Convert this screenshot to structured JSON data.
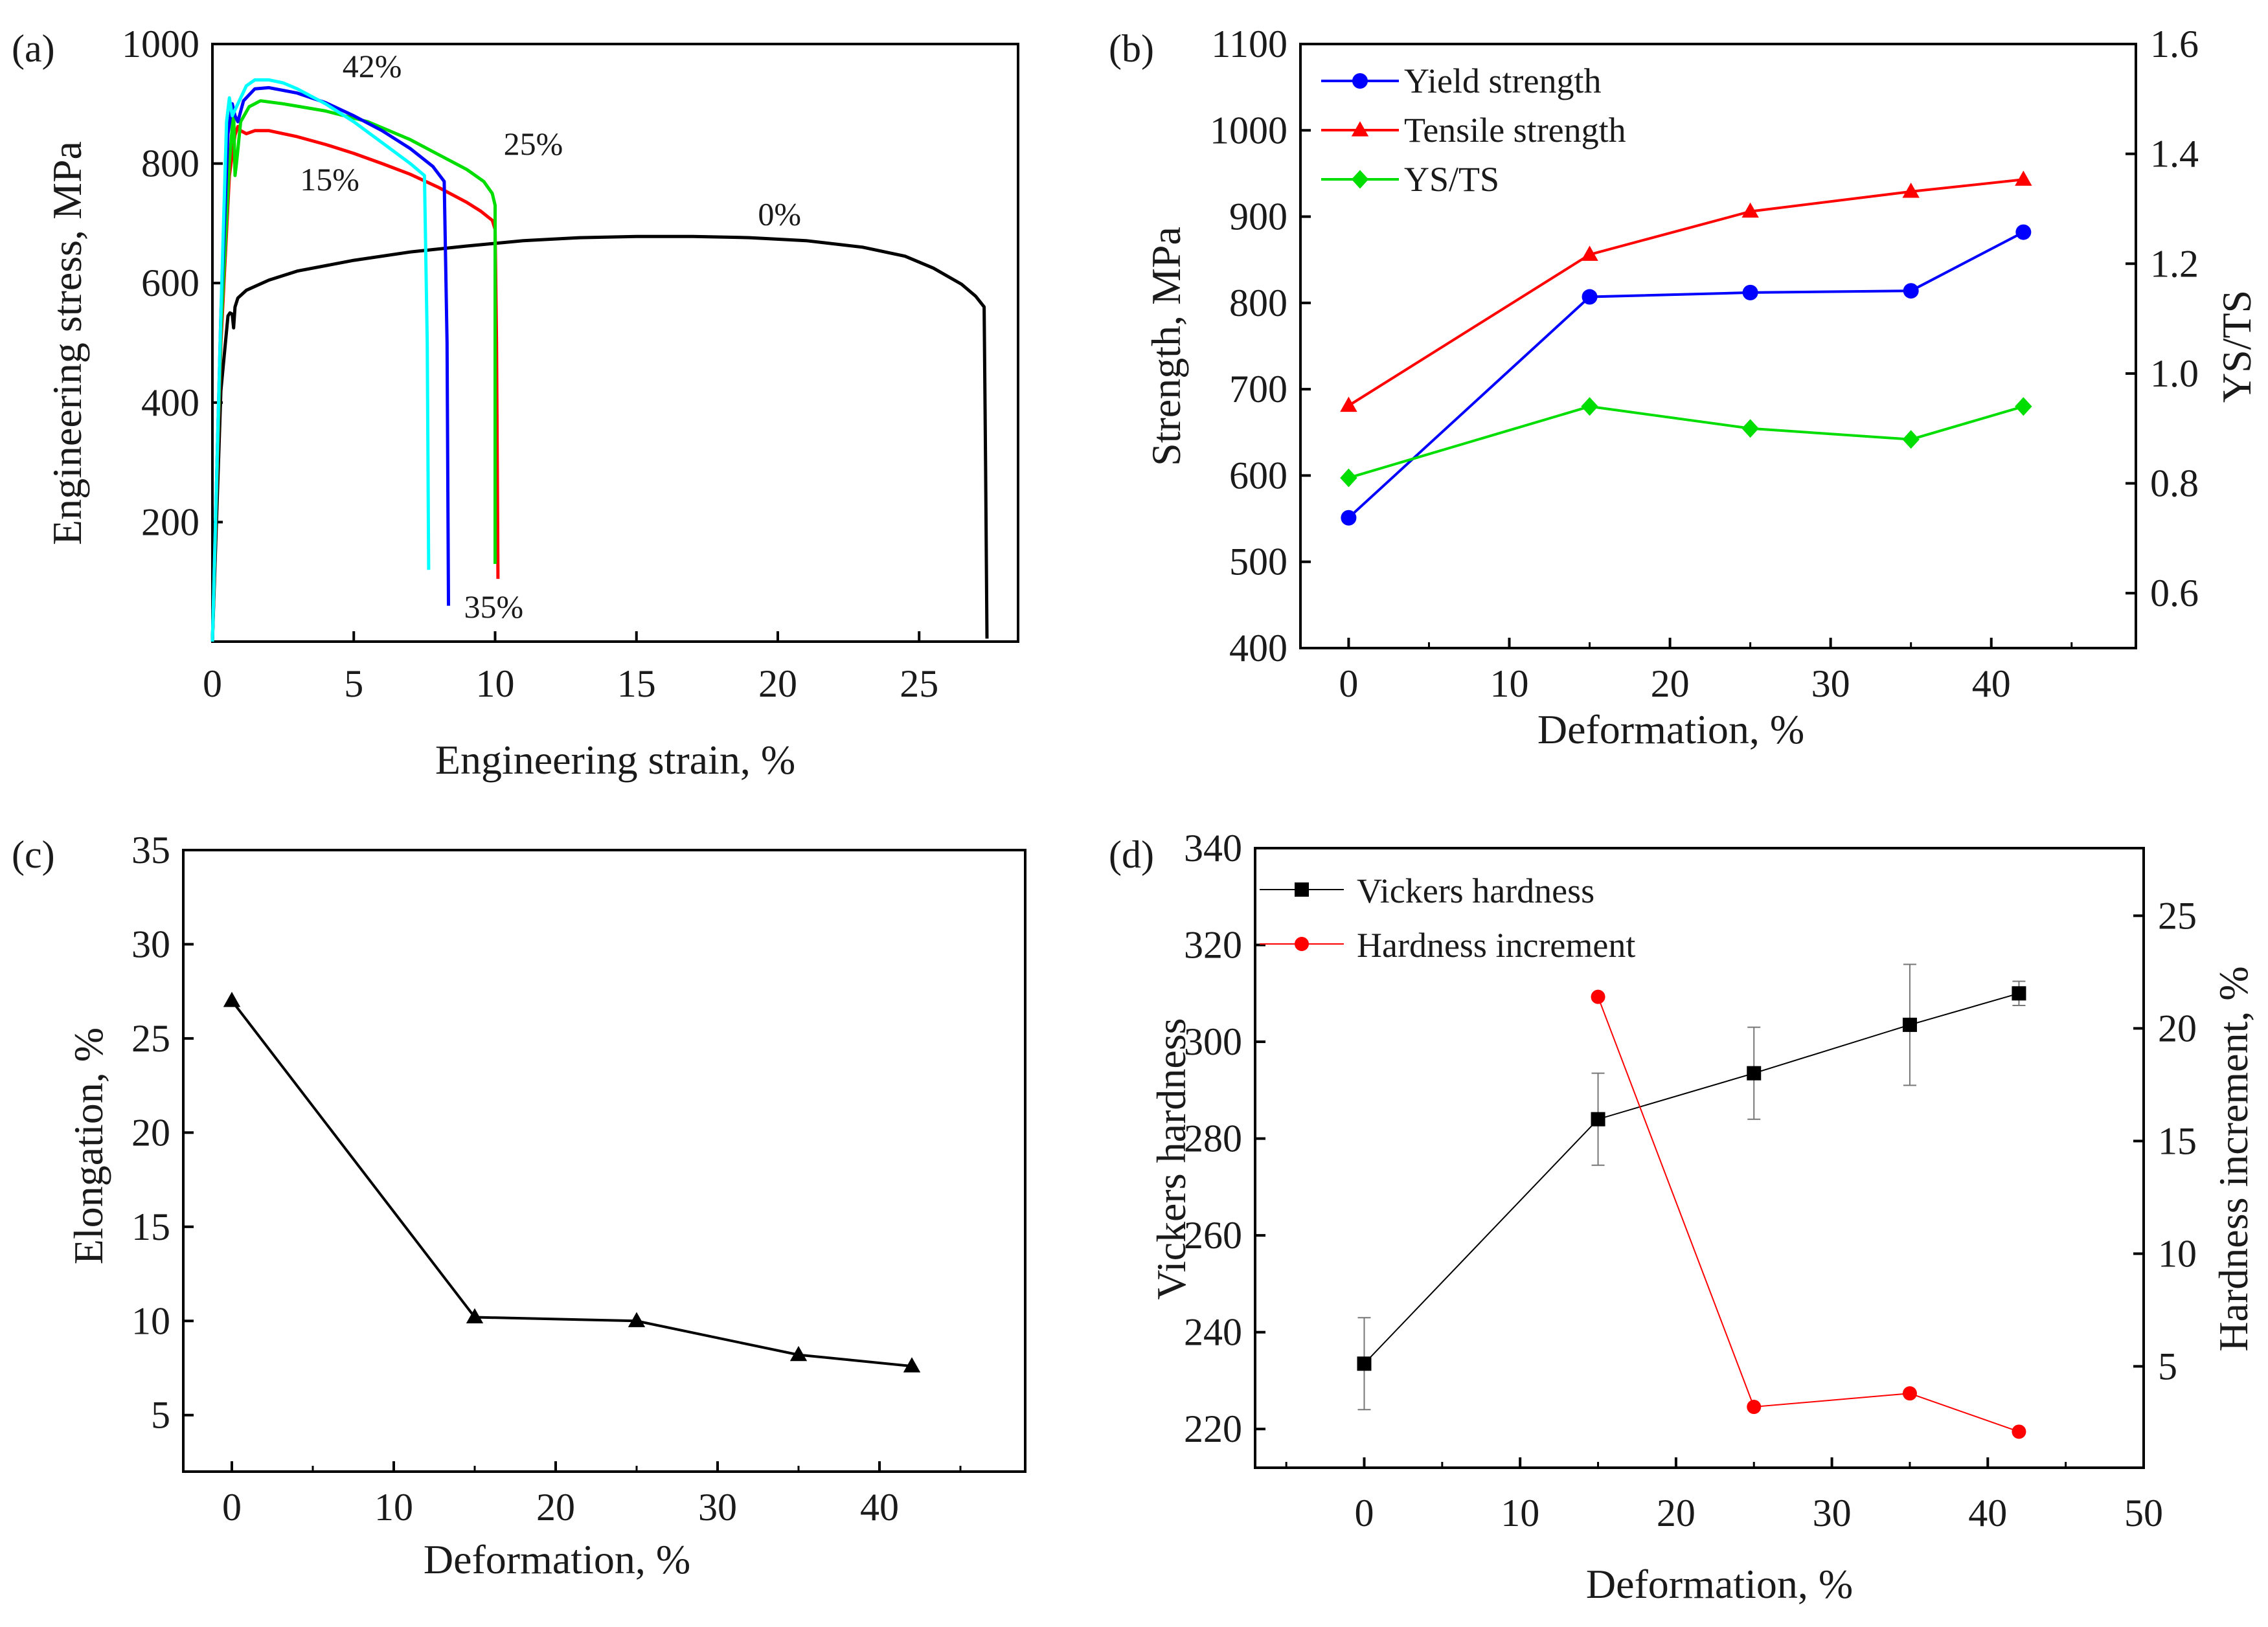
{
  "chart_data": [
    {
      "id": "a",
      "panel_label": "(a)",
      "type": "line",
      "title": "",
      "xlabel": "Engineering strain, %",
      "ylabel": "Engineering stress, MPa",
      "xlim": [
        0,
        28.5
      ],
      "ylim": [
        0,
        1000
      ],
      "xticks": [
        "0",
        "5",
        "10",
        "15",
        "20",
        "25"
      ],
      "yticks": [
        "200",
        "400",
        "600",
        "800",
        "1000"
      ],
      "grid": false,
      "series": [
        {
          "name": "0%",
          "color": "#000000",
          "label": "0%",
          "x": [
            0,
            0.3,
            0.55,
            0.62,
            0.7,
            0.75,
            0.8,
            0.9,
            1.2,
            2,
            3,
            5,
            7,
            9,
            11,
            13,
            15,
            17,
            19,
            21,
            23,
            24.5,
            25.5,
            26.5,
            27,
            27.3,
            27.35,
            27.4
          ],
          "y": [
            0,
            420,
            545,
            550,
            548,
            525,
            560,
            575,
            588,
            605,
            620,
            638,
            652,
            662,
            671,
            676,
            678,
            678,
            676,
            671,
            660,
            645,
            625,
            598,
            578,
            560,
            300,
            5
          ]
        },
        {
          "name": "15%",
          "color": "#ff0000",
          "label": "15%",
          "x": [
            0,
            0.3,
            0.6,
            0.8,
            0.9,
            1.0,
            1.2,
            1.5,
            2,
            3,
            4,
            5,
            6,
            7,
            8,
            9,
            9.5,
            9.9,
            10.0,
            10.05,
            10.1
          ],
          "y": [
            0,
            500,
            780,
            848,
            862,
            855,
            850,
            855,
            855,
            845,
            832,
            817,
            800,
            782,
            760,
            735,
            720,
            705,
            690,
            500,
            105
          ]
        },
        {
          "name": "25%",
          "color": "#00dd00",
          "label": "25%",
          "x": [
            0,
            0.3,
            0.6,
            0.75,
            0.8,
            0.85,
            1.0,
            1.3,
            1.7,
            2.5,
            4,
            5.5,
            7,
            8,
            9,
            9.6,
            9.9,
            10.0,
            10.0,
            10.0
          ],
          "y": [
            0,
            520,
            800,
            890,
            780,
            800,
            870,
            895,
            905,
            900,
            888,
            870,
            840,
            815,
            790,
            770,
            750,
            730,
            500,
            130
          ]
        },
        {
          "name": "35%",
          "color": "#0000ff",
          "label": "35%",
          "x": [
            0,
            0.3,
            0.55,
            0.7,
            0.8,
            0.9,
            1.1,
            1.5,
            2,
            3,
            4,
            5,
            6,
            7,
            7.8,
            8.2,
            8.3,
            8.35
          ],
          "y": [
            0,
            550,
            850,
            900,
            880,
            870,
            905,
            925,
            927,
            918,
            902,
            880,
            855,
            825,
            795,
            770,
            500,
            60
          ]
        },
        {
          "name": "42%",
          "color": "#00ffff",
          "label": "42%",
          "x": [
            0,
            0.3,
            0.5,
            0.6,
            0.7,
            0.9,
            1.2,
            1.5,
            2,
            2.5,
            3,
            4,
            5,
            6,
            7,
            7.5,
            7.6,
            7.65
          ],
          "y": [
            0,
            550,
            870,
            910,
            880,
            900,
            930,
            940,
            940,
            935,
            925,
            900,
            870,
            835,
            800,
            780,
            500,
            120
          ]
        }
      ],
      "annotations": [
        {
          "text": "42%",
          "x": 4.6,
          "y": 945
        },
        {
          "text": "25%",
          "x": 10.3,
          "y": 815
        },
        {
          "text": "15%",
          "x": 3.1,
          "y": 755
        },
        {
          "text": "0%",
          "x": 19.3,
          "y": 697
        },
        {
          "text": "35%",
          "x": 8.9,
          "y": 40
        }
      ]
    },
    {
      "id": "b",
      "panel_label": "(b)",
      "type": "line",
      "title": "",
      "xlabel": "Deformation, %",
      "ylabel": "Strength, MPa",
      "y2label": "YS/TS",
      "xlim": [
        -3,
        49
      ],
      "ylim": [
        400,
        1100
      ],
      "y2lim": [
        0.5,
        1.6
      ],
      "xticks": [
        "0",
        "10",
        "20",
        "30",
        "40"
      ],
      "yticks": [
        "400",
        "500",
        "600",
        "700",
        "800",
        "900",
        "1000",
        "1100"
      ],
      "y2ticks": [
        "0.6",
        "0.8",
        "1.0",
        "1.2",
        "1.4",
        "1.6"
      ],
      "legend": "top-left",
      "series": [
        {
          "name": "Yield strength",
          "color": "#0000ff",
          "marker": "circle",
          "axis": "left",
          "x": [
            0,
            15,
            25,
            35,
            42
          ],
          "y": [
            551,
            807,
            812,
            814,
            882
          ]
        },
        {
          "name": "Tensile strength",
          "color": "#ff0000",
          "marker": "triangle",
          "axis": "left",
          "x": [
            0,
            15,
            25,
            35,
            42
          ],
          "y": [
            681,
            856,
            906,
            929,
            943
          ]
        },
        {
          "name": "YS/TS",
          "color": "#00dd00",
          "marker": "diamond",
          "axis": "right",
          "x": [
            0,
            15,
            25,
            35,
            42
          ],
          "y": [
            0.81,
            0.94,
            0.9,
            0.88,
            0.94
          ]
        }
      ]
    },
    {
      "id": "c",
      "panel_label": "(c)",
      "type": "line",
      "title": "",
      "xlabel": "Deformation, %",
      "ylabel": "Elongation, %",
      "xlim": [
        -3,
        49
      ],
      "ylim": [
        2,
        35
      ],
      "xticks": [
        "0",
        "10",
        "20",
        "30",
        "40"
      ],
      "yticks": [
        "5",
        "10",
        "15",
        "20",
        "25",
        "30",
        "35"
      ],
      "series": [
        {
          "name": "Elongation",
          "color": "#000000",
          "marker": "triangle",
          "x": [
            0,
            15,
            25,
            35,
            42
          ],
          "y": [
            27.0,
            10.2,
            10.0,
            8.2,
            7.6
          ]
        }
      ]
    },
    {
      "id": "d",
      "panel_label": "(d)",
      "type": "line",
      "title": "",
      "xlabel": "Deformation, %",
      "ylabel": "Vickers hardness",
      "y2label": "Hardness increment, %",
      "xlim": [
        -7,
        50
      ],
      "ylim": [
        212,
        340
      ],
      "y2lim": [
        0.5,
        28
      ],
      "xticks": [
        "0",
        "10",
        "20",
        "30",
        "40",
        "50"
      ],
      "yticks": [
        "220",
        "240",
        "260",
        "280",
        "300",
        "320",
        "340"
      ],
      "y2ticks": [
        "5",
        "10",
        "15",
        "20",
        "25"
      ],
      "legend": "top-left",
      "series": [
        {
          "name": "Vickers hardness",
          "color": "#000000",
          "marker": "square",
          "axis": "left",
          "x": [
            0,
            15,
            25,
            35,
            42
          ],
          "y": [
            233.5,
            284,
            293.5,
            303.5,
            310
          ],
          "err": [
            9.5,
            9.5,
            9.5,
            12.5,
            2.5
          ]
        },
        {
          "name": "Hardness increment",
          "color": "#ff0000",
          "marker": "circle",
          "axis": "right",
          "x": [
            15,
            25,
            35,
            42
          ],
          "y": [
            21.4,
            3.2,
            3.8,
            2.1
          ]
        }
      ]
    }
  ]
}
